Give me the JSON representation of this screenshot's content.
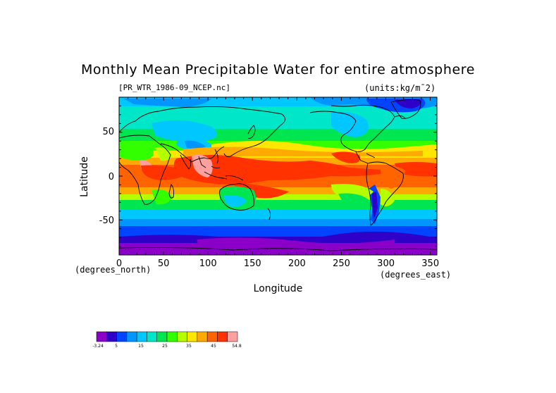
{
  "title": "Monthly Mean Precipitable Water for entire atmosphere",
  "source_label": "[PR_WTR_1986-09_NCEP.nc]",
  "units_label": "(units:kg/m^2)",
  "x_axis": {
    "label": "Longitude",
    "units": "(degrees_east)",
    "ticks": [
      "0",
      "50",
      "100",
      "150",
      "200",
      "250",
      "300",
      "350"
    ]
  },
  "y_axis": {
    "label": "Latitude",
    "units": "(degrees_north)",
    "ticks": [
      "50",
      "0",
      "-50"
    ]
  },
  "colorbar": {
    "colors": [
      "#8a00c8",
      "#2e00c8",
      "#0044ff",
      "#0095ff",
      "#00c8ff",
      "#00e6c8",
      "#00e650",
      "#32ff00",
      "#b4ff00",
      "#ffe600",
      "#ffaa00",
      "#ff6400",
      "#ff3200",
      "#ffa0a0"
    ],
    "labels": [
      "-3.24",
      "5",
      "15",
      "25",
      "35",
      "45",
      "54.8"
    ]
  },
  "chart_data": {
    "type": "heatmap",
    "title": "Monthly Mean Precipitable Water for entire atmosphere",
    "xlabel": "Longitude",
    "ylabel": "Latitude",
    "xlim": [
      0,
      357.5
    ],
    "ylim": [
      -90,
      90
    ],
    "units": "kg/m^2",
    "value_range": [
      -3.24,
      54.8
    ],
    "legend": "colorbar bottom-left"
  }
}
